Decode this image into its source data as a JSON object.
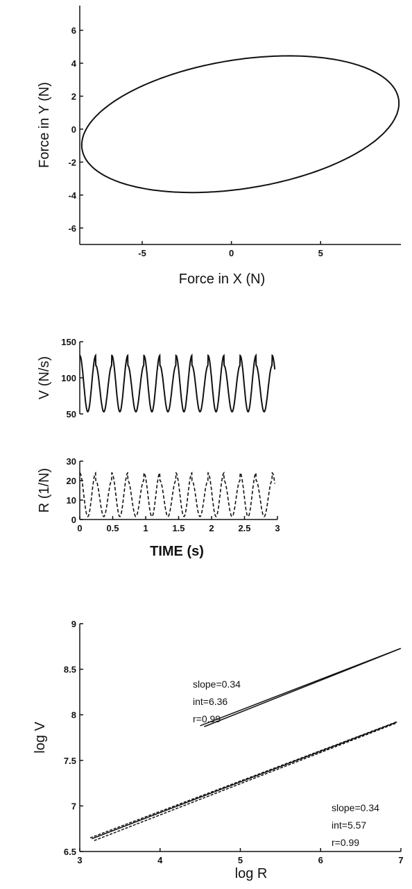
{
  "chart_data": [
    {
      "id": "force",
      "type": "line",
      "xlabel": "Force in X (N)",
      "ylabel": "Force in Y (N)",
      "xlim": [
        -8.5,
        9.5
      ],
      "ylim": [
        -7,
        7.5
      ],
      "xticks": [
        -5,
        0,
        5
      ],
      "yticks": [
        -6,
        -4,
        -2,
        0,
        2,
        4,
        6
      ],
      "ellipse": {
        "center_x": 0.5,
        "center_y": 0.3,
        "semi_major": 9.0,
        "semi_minor": 3.9,
        "tilt_deg": 10
      },
      "series": [
        {
          "style": "solid"
        }
      ]
    },
    {
      "id": "velocity",
      "type": "line",
      "xlabel": "",
      "ylabel": "V (N/s)",
      "xlim": [
        0,
        3
      ],
      "ylim": [
        50,
        150
      ],
      "yticks": [
        50,
        100,
        150
      ],
      "series": [
        {
          "style": "solid",
          "peaks": [
            131,
            117
          ],
          "trough": 53,
          "period_s": 0.2433
        }
      ]
    },
    {
      "id": "radius",
      "type": "line",
      "xlabel": "TIME (s)",
      "ylabel": "R (1/N)",
      "xlim": [
        0,
        3
      ],
      "ylim": [
        0,
        30
      ],
      "xticks": [
        "0",
        "0.5",
        "1",
        "1.5",
        "2",
        "2.5",
        "3"
      ],
      "yticks": [
        0,
        10,
        20,
        30
      ],
      "series": [
        {
          "style": "dashed",
          "peaks": [
            24,
            20
          ],
          "trough": 1.5,
          "period_s": 0.2433
        }
      ]
    },
    {
      "id": "loglog",
      "type": "line",
      "xlabel": "log R",
      "ylabel": "log V",
      "xlim": [
        3,
        7
      ],
      "ylim": [
        6.5,
        9
      ],
      "xticks": [
        3,
        4,
        5,
        6,
        7
      ],
      "yticks": [
        "6.5",
        "7",
        "7.5",
        "8",
        "8.5",
        "9"
      ],
      "series": [
        {
          "style": "solid",
          "slope": 0.34,
          "int": 6.36,
          "r": 0.99,
          "x_range": [
            4.5,
            7.0
          ],
          "y_range": [
            7.88,
            8.73
          ]
        },
        {
          "style": "dashed",
          "slope": 0.34,
          "int": 5.57,
          "r": 0.99,
          "x_range": [
            3.15,
            6.95
          ],
          "y_range": [
            6.64,
            7.92
          ]
        }
      ],
      "annotations": [
        {
          "lines": [
            "slope=0.34",
            "int=6.36",
            "r=0.99"
          ]
        },
        {
          "lines": [
            "slope=0.34",
            "int=5.57",
            "r=0.99"
          ]
        }
      ]
    }
  ]
}
